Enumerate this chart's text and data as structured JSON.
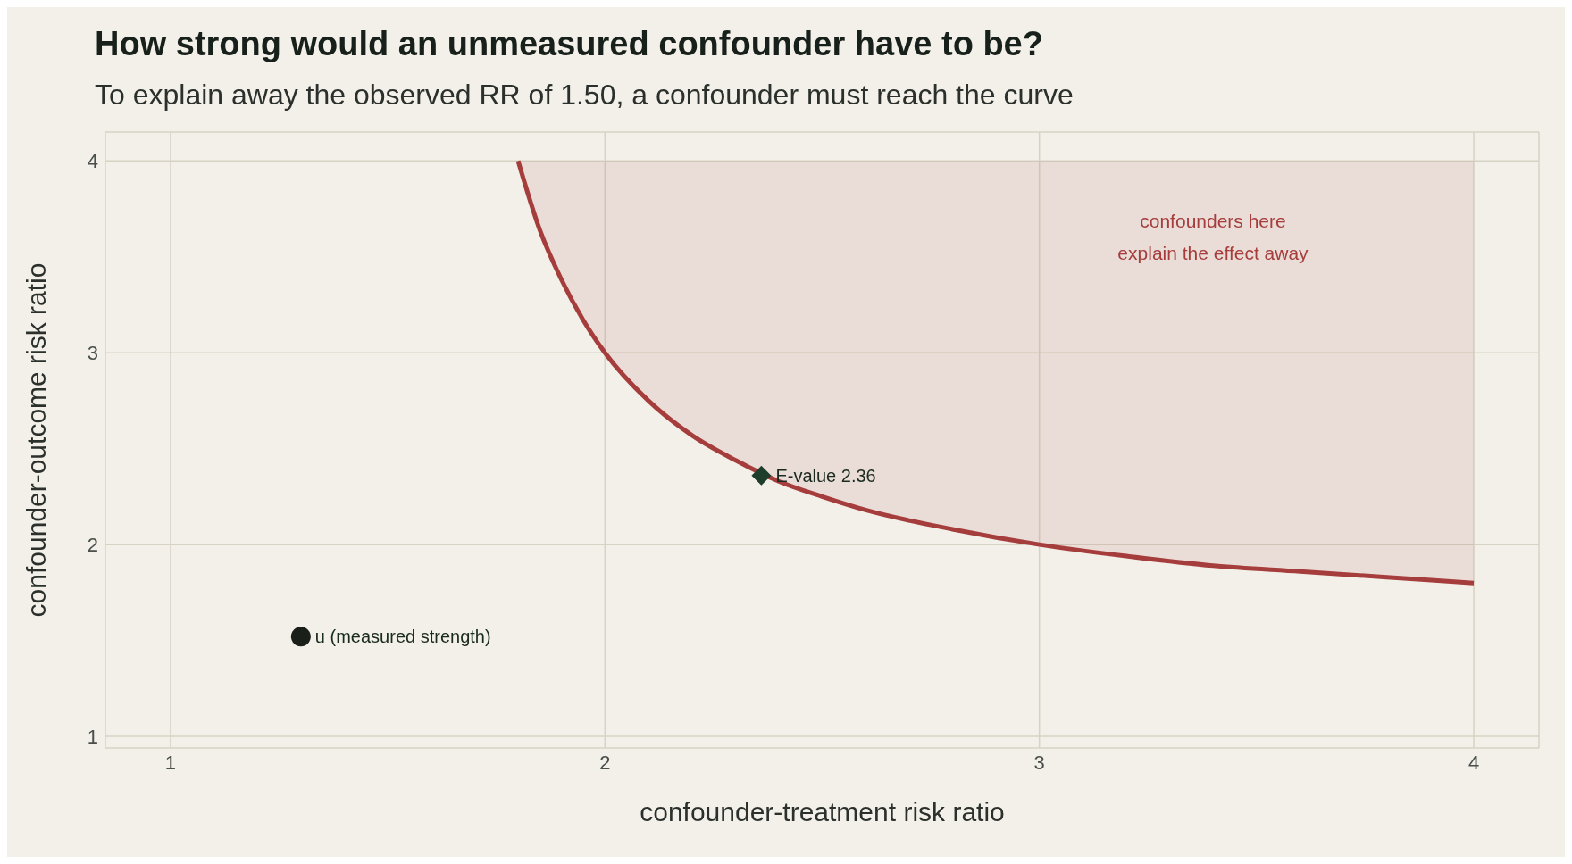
{
  "chart_data": {
    "type": "line",
    "title": "How strong would an unmeasured confounder have to be?",
    "subtitle": "To explain away the observed RR of 1.50, a confounder must reach the curve",
    "xlabel": "confounder-treatment risk ratio",
    "ylabel": "confounder-outcome risk ratio",
    "xlim": [
      0.85,
      4.15
    ],
    "ylim": [
      0.94,
      4.15
    ],
    "xticks": [
      1,
      2,
      3,
      4
    ],
    "yticks": [
      1,
      2,
      3,
      4
    ],
    "grid": true,
    "legend": false,
    "series": [
      {
        "color": "#a63d3d",
        "x": [
          1.8,
          1.85,
          1.9,
          1.95,
          2.0,
          2.1,
          2.2,
          2.3,
          2.4,
          2.5,
          2.6,
          2.8,
          3.0,
          3.2,
          3.4,
          3.6,
          3.8,
          4.0
        ],
        "values": [
          4.0,
          3.64,
          3.38,
          3.17,
          3.0,
          2.75,
          2.57,
          2.44,
          2.33,
          2.25,
          2.18,
          2.08,
          2.0,
          1.94,
          1.89,
          1.86,
          1.83,
          1.8
        ],
        "lower": [
          4.0,
          3.64,
          3.38,
          3.17,
          3.0,
          2.75,
          2.57,
          2.44,
          2.33,
          2.25,
          2.18,
          2.08,
          2.0,
          1.94,
          1.89,
          1.86,
          1.83,
          1.8
        ],
        "upper": [
          4,
          4,
          4,
          4,
          4,
          4,
          4,
          4,
          4,
          4,
          4,
          4,
          4,
          4,
          4,
          4,
          4,
          4
        ],
        "line_style": "solid",
        "marker": "none"
      },
      {
        "type": "scatter",
        "color": "#1f3d2b",
        "x": [
          2.36
        ],
        "values": [
          2.36
        ],
        "marker": "diamond"
      },
      {
        "type": "scatter",
        "color": "#1a1f1a",
        "x": [
          1.3
        ],
        "values": [
          1.52
        ],
        "marker": "circle"
      }
    ],
    "annotations": [
      {
        "text": "E-value 2.36",
        "x": 2.36,
        "y": 2.36
      },
      {
        "text": "u (measured strength)",
        "x": 1.3,
        "y": 1.52
      },
      "confounders here\nexplain the effect away"
    ]
  }
}
